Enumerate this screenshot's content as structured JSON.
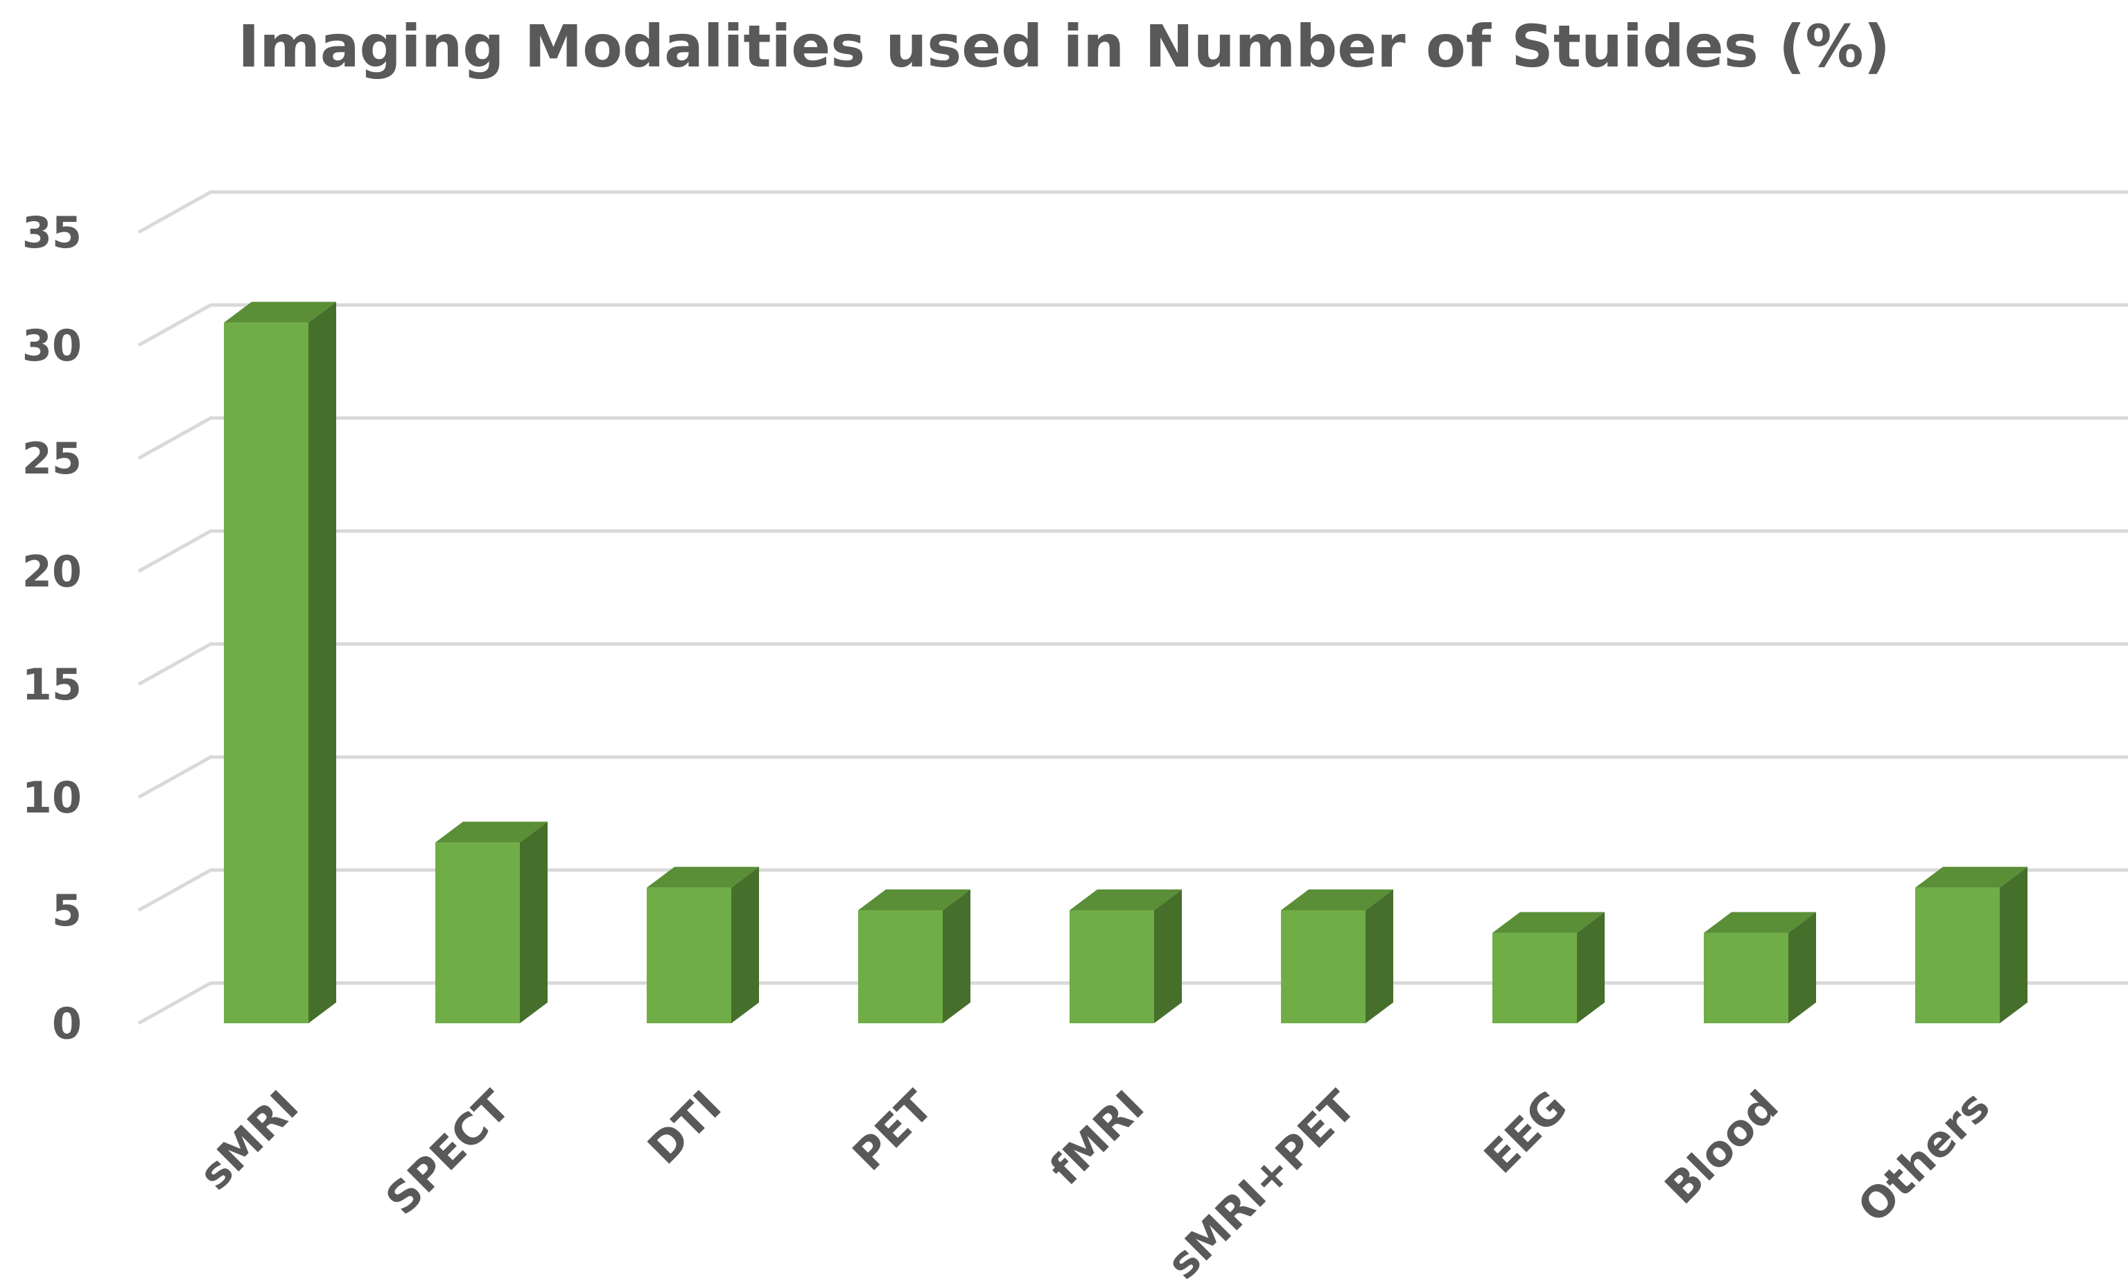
{
  "chart_data": {
    "type": "bar",
    "title": "Imaging Modalities used in Number of Stuides (%)",
    "xlabel": "",
    "ylabel": "",
    "categories": [
      "sMRI",
      "SPECT",
      "DTI",
      "PET",
      "fMRI",
      "sMRI+PET",
      "EEG",
      "Blood",
      "Others"
    ],
    "values": [
      31,
      8,
      6,
      5,
      5,
      5,
      4,
      4,
      6
    ],
    "ylim": [
      0,
      35
    ],
    "yticks": [
      "0",
      "5",
      "10",
      "15",
      "20",
      "25",
      "30",
      "35"
    ],
    "grid": true,
    "style": "3d-column",
    "colors": {
      "front": "#70ad47",
      "side": "#466f2c",
      "top": "#5a8e37",
      "grid": "#d9d9d9",
      "text": "#595959"
    }
  }
}
